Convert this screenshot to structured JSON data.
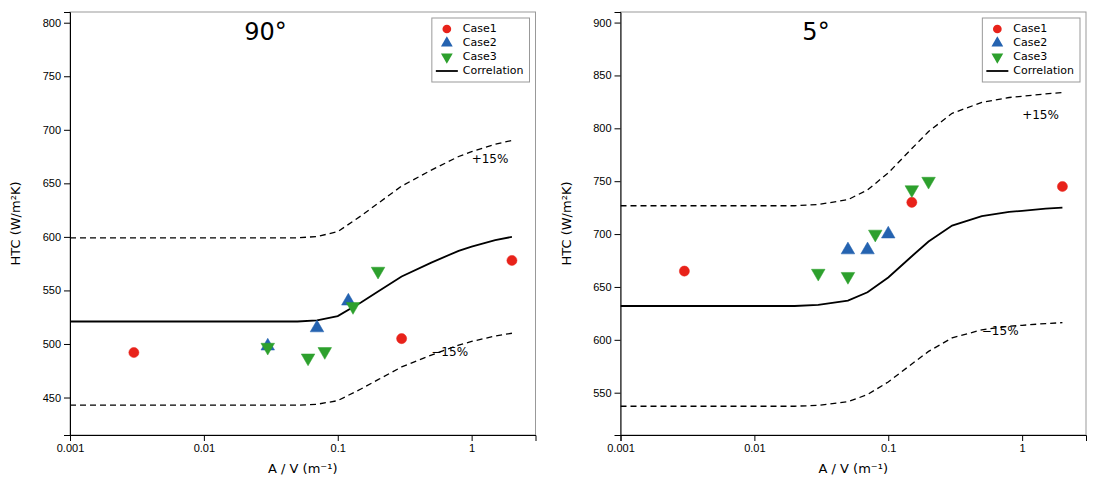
{
  "chart_data": [
    {
      "type": "scatter",
      "xlabel": "A / V (m⁻¹)",
      "ylabel": "HTC (W/m²K)",
      "log": "x",
      "xlim": [
        0.001,
        3.0
      ],
      "ylim": [
        415,
        810
      ],
      "xticks": [
        0.001,
        0.01,
        0.1,
        1
      ],
      "yticks": [
        450,
        500,
        550,
        600,
        650,
        700,
        750,
        800
      ],
      "legend": "upper right",
      "series": [
        {
          "name": "Case1",
          "color": "#e8221a",
          "marker": "circle",
          "x": [
            0.003,
            0.3,
            2.0
          ],
          "values": [
            492,
            505,
            578
          ]
        },
        {
          "name": "Case2",
          "color": "#2563b0",
          "marker": "triangle-up",
          "x": [
            0.03,
            0.07,
            0.12
          ],
          "values": [
            498,
            515,
            540
          ]
        },
        {
          "name": "Case3",
          "color": "#2da02d",
          "marker": "triangle-down",
          "x": [
            0.03,
            0.06,
            0.08,
            0.13,
            0.2
          ],
          "values": [
            497,
            487,
            493,
            535,
            568
          ]
        },
        {
          "name": "Correlation",
          "type": "line",
          "color": "#000000",
          "line_style": "solid",
          "x": [
            0.001,
            0.002,
            0.004,
            0.007,
            0.01,
            0.02,
            0.03,
            0.05,
            0.07,
            0.1,
            0.15,
            0.2,
            0.3,
            0.5,
            0.8,
            1.0,
            1.5,
            2.0
          ],
          "values": [
            521,
            521,
            521,
            521,
            521,
            521,
            521,
            521,
            522,
            526,
            539,
            549,
            563,
            576,
            587,
            591,
            597,
            600
          ]
        },
        {
          "type": "line",
          "color": "#000000",
          "line_style": "dashed",
          "x": [
            0.001,
            0.002,
            0.004,
            0.007,
            0.01,
            0.02,
            0.03,
            0.05,
            0.07,
            0.1,
            0.15,
            0.2,
            0.3,
            0.5,
            0.8,
            1.0,
            1.5,
            2.0
          ],
          "values": [
            599.15,
            599.15,
            599.15,
            599.15,
            599.15,
            599.15,
            599.15,
            599.15,
            600.3,
            604.9,
            619.85,
            631.35,
            647.45,
            662.4,
            675.05,
            679.65,
            686.55,
            690
          ]
        },
        {
          "type": "line",
          "color": "#000000",
          "line_style": "dashed",
          "x": [
            0.001,
            0.002,
            0.004,
            0.007,
            0.01,
            0.02,
            0.03,
            0.05,
            0.07,
            0.1,
            0.15,
            0.2,
            0.3,
            0.5,
            0.8,
            1.0,
            1.5,
            2.0
          ],
          "values": [
            442.85,
            442.85,
            442.85,
            442.85,
            442.85,
            442.85,
            442.85,
            442.85,
            443.7,
            447.1,
            458.15,
            466.65,
            478.55,
            489.6,
            498.95,
            502.35,
            507.45,
            510
          ]
        }
      ],
      "annotations": [
        {
          "text": "90°"
        },
        {
          "text": "+15%",
          "x": 1.0,
          "y": 672
        },
        {
          "text": "−15%",
          "x": 0.5,
          "y": 492
        }
      ]
    },
    {
      "type": "scatter",
      "xlabel": "A / V (m⁻¹)",
      "ylabel": "HTC (W/m²K)",
      "log": "x",
      "xlim": [
        0.001,
        3.0
      ],
      "ylim": [
        510,
        910
      ],
      "xticks": [
        0.001,
        0.01,
        0.1,
        1
      ],
      "yticks": [
        550,
        600,
        650,
        700,
        750,
        800,
        850,
        900
      ],
      "legend": "upper right",
      "series": [
        {
          "name": "Case1",
          "color": "#e8221a",
          "marker": "circle",
          "x": [
            0.003,
            0.15,
            2.0
          ],
          "values": [
            665,
            730,
            745
          ]
        },
        {
          "name": "Case2",
          "color": "#2563b0",
          "marker": "triangle-up",
          "x": [
            0.05,
            0.07,
            0.1
          ],
          "values": [
            685,
            685,
            700
          ]
        },
        {
          "name": "Case3",
          "color": "#2da02d",
          "marker": "triangle-down",
          "x": [
            0.03,
            0.05,
            0.08,
            0.15,
            0.2
          ],
          "values": [
            663,
            660,
            700,
            742,
            750
          ]
        },
        {
          "name": "Correlation",
          "type": "line",
          "color": "#000000",
          "line_style": "solid",
          "x": [
            0.001,
            0.002,
            0.004,
            0.007,
            0.01,
            0.02,
            0.03,
            0.05,
            0.07,
            0.1,
            0.15,
            0.2,
            0.3,
            0.5,
            0.8,
            1.0,
            1.5,
            2.0
          ],
          "values": [
            632,
            632,
            632,
            632,
            632,
            632,
            633,
            637,
            645,
            659,
            679,
            693,
            708,
            717,
            721,
            722,
            724,
            725
          ]
        },
        {
          "type": "line",
          "color": "#000000",
          "line_style": "dashed",
          "x": [
            0.001,
            0.002,
            0.004,
            0.007,
            0.01,
            0.02,
            0.03,
            0.05,
            0.07,
            0.1,
            0.15,
            0.2,
            0.3,
            0.5,
            0.8,
            1.0,
            1.5,
            2.0
          ],
          "values": [
            726.8,
            726.8,
            726.8,
            726.8,
            726.8,
            726.8,
            727.95,
            732.55,
            741.75,
            757.85,
            780.85,
            796.95,
            814.2,
            824.55,
            829.15,
            830.3,
            832.6,
            833.75
          ]
        },
        {
          "type": "line",
          "color": "#000000",
          "line_style": "dashed",
          "x": [
            0.001,
            0.002,
            0.004,
            0.007,
            0.01,
            0.02,
            0.03,
            0.05,
            0.07,
            0.1,
            0.15,
            0.2,
            0.3,
            0.5,
            0.8,
            1.0,
            1.5,
            2.0
          ],
          "values": [
            537.2,
            537.2,
            537.2,
            537.2,
            537.2,
            537.2,
            538.05,
            541.45,
            548.25,
            560.15,
            577.15,
            589.05,
            601.8,
            609.45,
            612.85,
            613.7,
            615.4,
            616.25
          ]
        }
      ],
      "annotations": [
        {
          "text": "5°"
        },
        {
          "text": "+15%",
          "x": 1.0,
          "y": 812
        },
        {
          "text": "−15%",
          "x": 0.5,
          "y": 608
        }
      ]
    }
  ]
}
